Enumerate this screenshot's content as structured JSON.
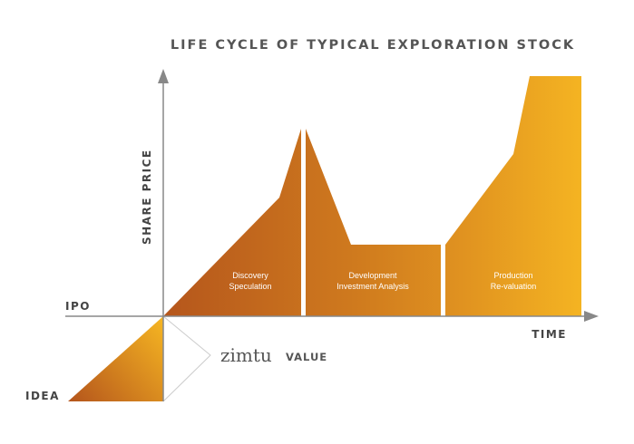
{
  "title": "LIFE CYCLE OF TYPICAL EXPLORATION STOCK",
  "y_axis_label": "SHARE PRICE",
  "x_axis_label": "TIME",
  "markers": {
    "ipo": "IPO",
    "idea": "IDEA"
  },
  "phases": [
    {
      "line1": "Discovery",
      "line2": "Speculation"
    },
    {
      "line1": "Development",
      "line2": "Investment Analysis"
    },
    {
      "line1": "Production",
      "line2": "Re-valuation"
    }
  ],
  "brand": {
    "name": "zimtu",
    "suffix": "VALUE"
  },
  "colors": {
    "gradient_dark": "#b8581c",
    "gradient_mid": "#d98a1f",
    "gradient_light": "#f4b421",
    "axis": "#888888",
    "text": "#555555"
  }
}
